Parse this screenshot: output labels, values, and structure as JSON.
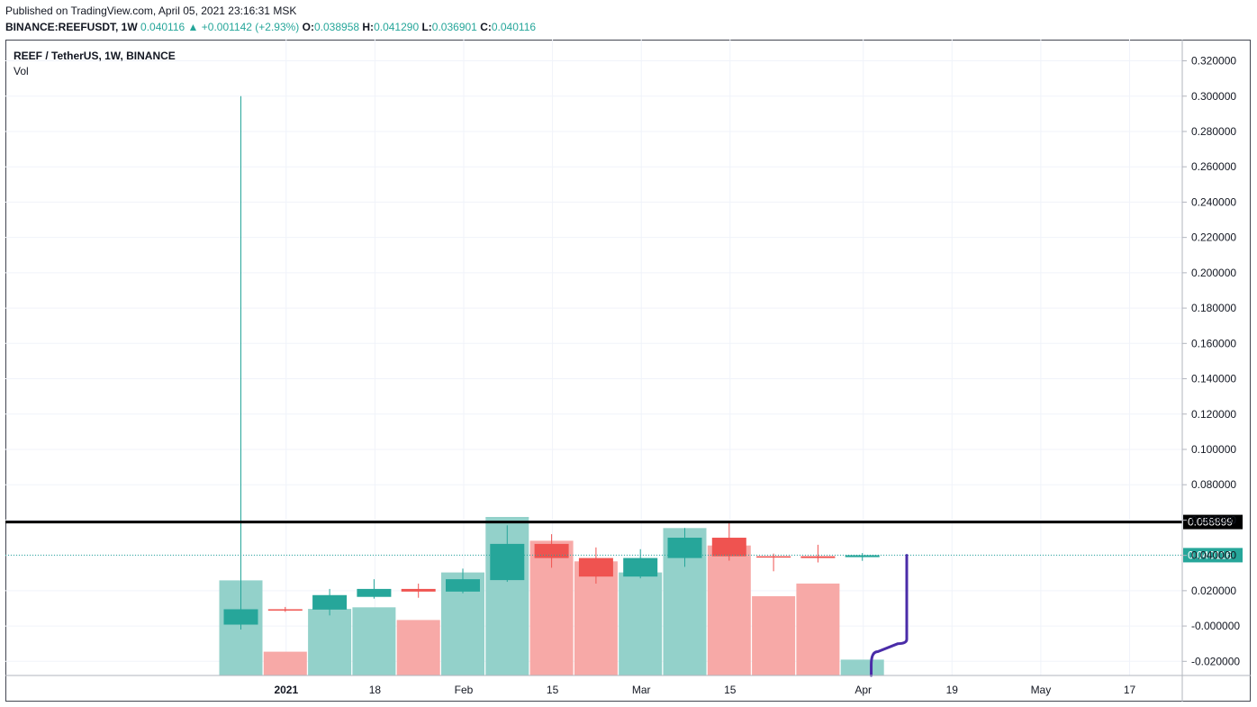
{
  "header": {
    "publish_text": "Published on TradingView.com, April 05, 2021 23:16:31 MSK",
    "symbol": "BINANCE:REEFUSDT, 1W",
    "last": "0.040116",
    "arrow": "▲",
    "change": "+0.001142 (+2.93%)",
    "o_label": "O:",
    "o_value": "0.038958",
    "h_label": "H:",
    "h_value": "0.041290",
    "l_label": "L:",
    "l_value": "0.036901",
    "c_label": "C:",
    "c_value": "0.040116"
  },
  "legend": {
    "title": "REEF / TetherUS, 1W, BINANCE",
    "vol_label": "Vol"
  },
  "colors": {
    "up": "#26a69a",
    "down": "#ef5350",
    "vol_up": "#93d1ca",
    "vol_down": "#f7a9a7",
    "grid": "#f0f3fa",
    "axis_text": "#131722",
    "support_line": "#000000",
    "drawing": "#4a2ca8"
  },
  "chart_data": {
    "type": "candlestick",
    "interval": "1W",
    "ylim": [
      -0.028,
      0.332
    ],
    "y_ticks": [
      "0.320000",
      "0.300000",
      "0.280000",
      "0.260000",
      "0.240000",
      "0.220000",
      "0.200000",
      "0.180000",
      "0.160000",
      "0.140000",
      "0.120000",
      "0.100000",
      "0.080000",
      "0.060000",
      "0.040000",
      "0.020000",
      "-0.000000",
      "-0.020000"
    ],
    "x_ticks": [
      "2021",
      "18",
      "Feb",
      "15",
      "Mar",
      "15",
      "Apr",
      "19",
      "May",
      "17"
    ],
    "candles": [
      {
        "o": 0.0008,
        "h": 0.3,
        "l": -0.002,
        "c": 0.0095
      },
      {
        "o": 0.0095,
        "h": 0.0108,
        "l": 0.008,
        "c": 0.0088
      },
      {
        "o": 0.0093,
        "h": 0.021,
        "l": 0.006,
        "c": 0.0175
      },
      {
        "o": 0.0165,
        "h": 0.0265,
        "l": 0.0155,
        "c": 0.021
      },
      {
        "o": 0.021,
        "h": 0.024,
        "l": 0.016,
        "c": 0.0195
      },
      {
        "o": 0.0195,
        "h": 0.0325,
        "l": 0.0185,
        "c": 0.0265
      },
      {
        "o": 0.026,
        "h": 0.057,
        "l": 0.025,
        "c": 0.0465
      },
      {
        "o": 0.0465,
        "h": 0.052,
        "l": 0.033,
        "c": 0.0385
      },
      {
        "o": 0.0385,
        "h": 0.0445,
        "l": 0.024,
        "c": 0.028
      },
      {
        "o": 0.028,
        "h": 0.0435,
        "l": 0.027,
        "c": 0.0385
      },
      {
        "o": 0.0385,
        "h": 0.0555,
        "l": 0.0335,
        "c": 0.05
      },
      {
        "o": 0.05,
        "h": 0.0595,
        "l": 0.037,
        "c": 0.0395
      },
      {
        "o": 0.0395,
        "h": 0.041,
        "l": 0.031,
        "c": 0.039
      },
      {
        "o": 0.0395,
        "h": 0.046,
        "l": 0.036,
        "c": 0.0385
      },
      {
        "o": 0.039,
        "h": 0.0413,
        "l": 0.0369,
        "c": 0.0401
      }
    ],
    "volume_up": [
      true,
      false,
      true,
      true,
      false,
      true,
      true,
      false,
      false,
      true,
      true,
      false,
      false,
      false,
      true
    ],
    "volume_relative": [
      0.6,
      0.15,
      0.42,
      0.43,
      0.35,
      0.65,
      1.0,
      0.85,
      0.72,
      0.65,
      0.93,
      0.82,
      0.5,
      0.58,
      0.1
    ],
    "horizontal_line": {
      "value": 0.058899,
      "label": "0.058899"
    },
    "last_price": {
      "value": 0.040116,
      "label": "0.040116"
    },
    "drawing_path": [
      [
        14.2,
        -0.028
      ],
      [
        14.2,
        -0.022
      ],
      [
        14.35,
        -0.0145
      ],
      [
        14.8,
        -0.01
      ],
      [
        15.0,
        -0.0075
      ],
      [
        15.0,
        0.04
      ]
    ]
  }
}
